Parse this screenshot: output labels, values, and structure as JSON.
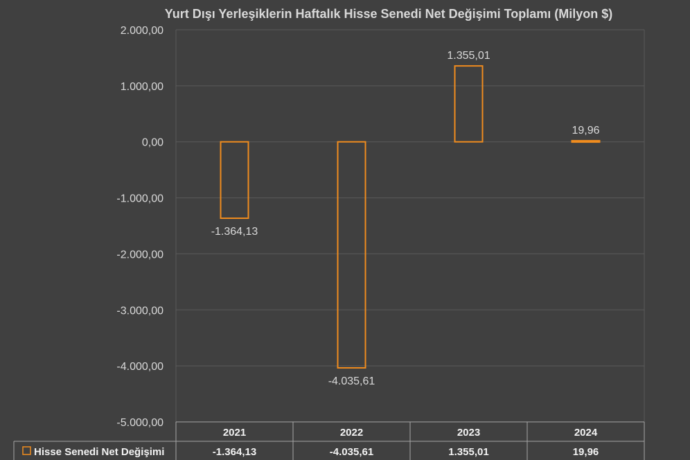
{
  "chart_data": {
    "type": "bar",
    "title": "Yurt Dışı Yerleşiklerin Haftalık Hisse Senedi Net Değişimi Toplamı (Milyon $)",
    "categories": [
      "2021",
      "2022",
      "2023",
      "2024"
    ],
    "series": [
      {
        "name": "Hisse Senedi Net Değişimi",
        "values": [
          -1364.13,
          -4035.61,
          1355.01,
          19.96
        ],
        "labels": [
          "-1.364,13",
          "-4.035,61",
          "1.355,01",
          "19,96"
        ],
        "table_labels": [
          "-1.364,13",
          "-4.035,61",
          "1.355,01",
          "19,96"
        ],
        "color": "#f08c1e"
      }
    ],
    "ylim": [
      -5000,
      2000
    ],
    "yticks": [
      2000,
      1000,
      0,
      -1000,
      -2000,
      -3000,
      -4000,
      -5000
    ],
    "ytick_labels": [
      "2.000,00",
      "1.000,00",
      "0,00",
      "-1.000,00",
      "-2.000,00",
      "-3.000,00",
      "-4.000,00",
      "-5.000,00"
    ],
    "grid": true,
    "legend": "data-table",
    "data_table": true
  },
  "colors": {
    "background": "#404040",
    "grid": "#5a5a5a",
    "bar_outline": "#f08c1e",
    "text": "#d9d9d9"
  }
}
